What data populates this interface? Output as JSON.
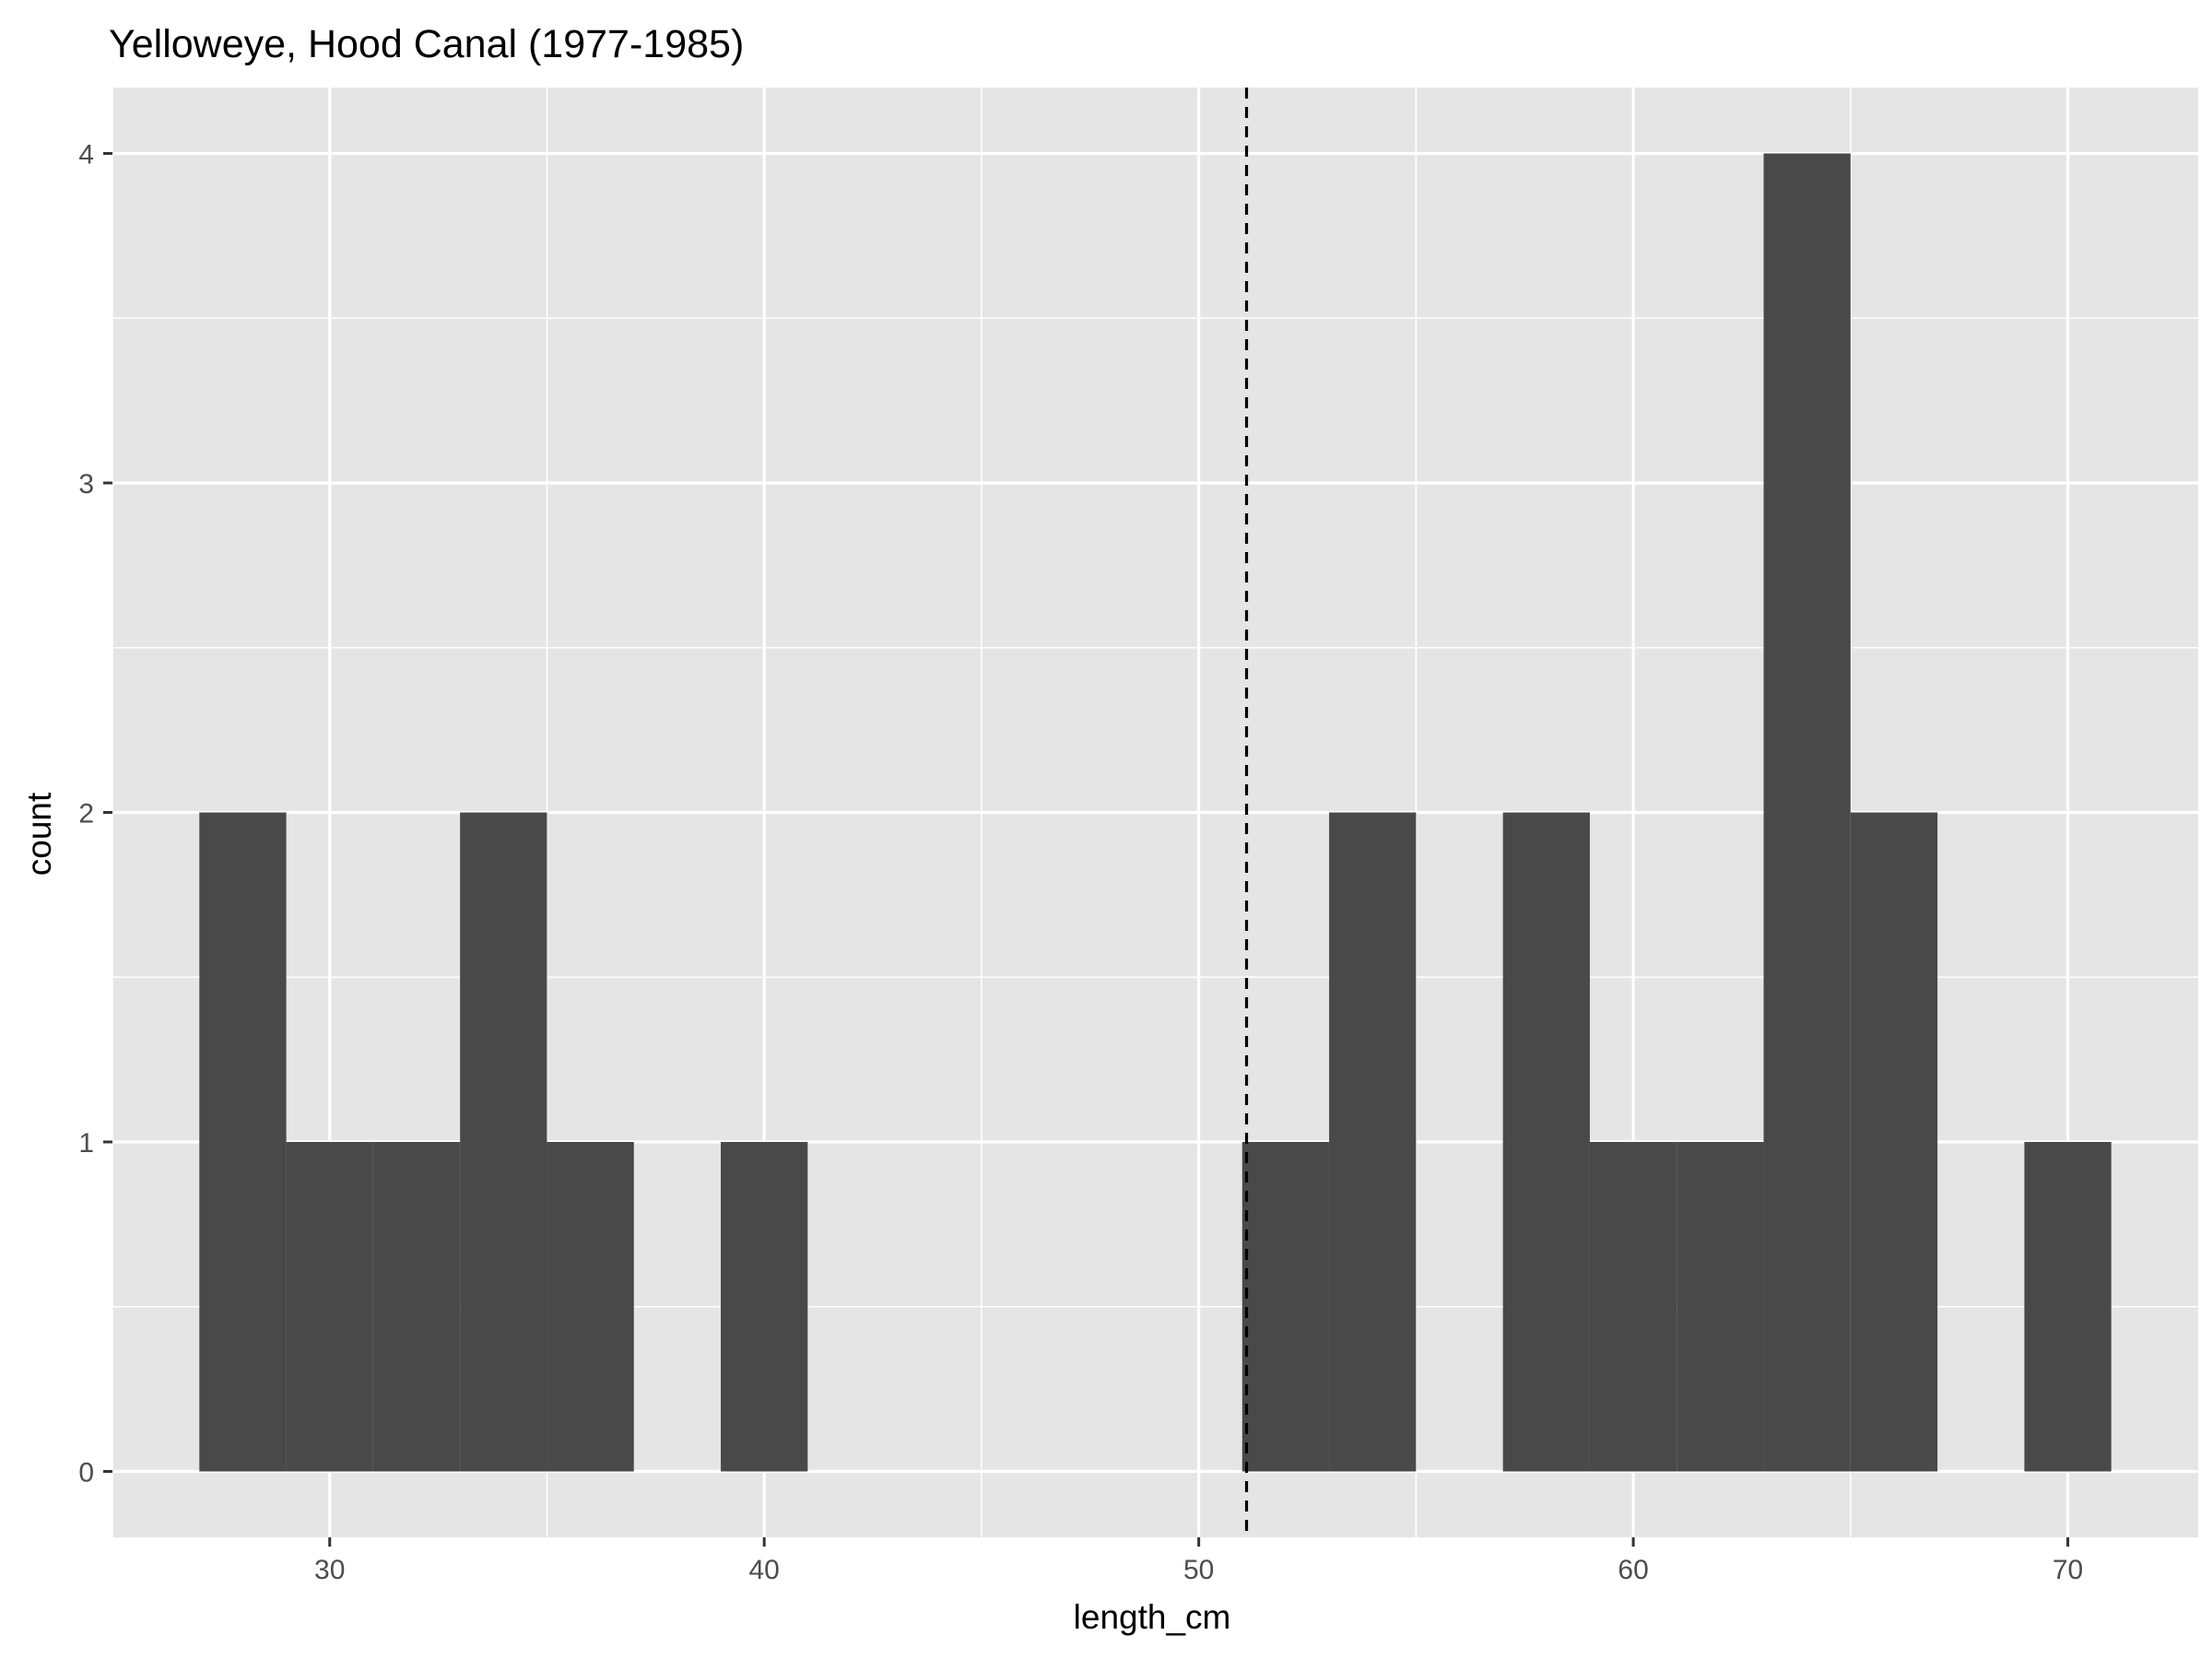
{
  "chart_data": {
    "type": "bar",
    "title": "Yelloweye, Hood Canal (1977-1985)",
    "xlabel": "length_cm",
    "ylabel": "count",
    "xlim": [
      25,
      73
    ],
    "ylim": [
      -0.2,
      4.2
    ],
    "x_ticks": [
      30,
      40,
      50,
      60,
      70
    ],
    "y_ticks": [
      0,
      1,
      2,
      3,
      4
    ],
    "bin_width": 2,
    "bins": [
      {
        "x0": 27,
        "x1": 29,
        "count": 2
      },
      {
        "x0": 29,
        "x1": 31,
        "count": 1
      },
      {
        "x0": 31,
        "x1": 33,
        "count": 1
      },
      {
        "x0": 33,
        "x1": 35,
        "count": 2
      },
      {
        "x0": 35,
        "x1": 37,
        "count": 1
      },
      {
        "x0": 39,
        "x1": 41,
        "count": 1
      },
      {
        "x0": 51,
        "x1": 53,
        "count": 1
      },
      {
        "x0": 53,
        "x1": 55,
        "count": 2
      },
      {
        "x0": 57,
        "x1": 59,
        "count": 2
      },
      {
        "x0": 59,
        "x1": 61,
        "count": 1
      },
      {
        "x0": 61,
        "x1": 63,
        "count": 1
      },
      {
        "x0": 63,
        "x1": 65,
        "count": 4
      },
      {
        "x0": 65,
        "x1": 67,
        "count": 2
      },
      {
        "x0": 69,
        "x1": 71,
        "count": 1
      }
    ],
    "mean_line": {
      "x": 51.1,
      "style": "dashed"
    },
    "grid": true,
    "colors": {
      "panel": "#e5e5e5",
      "grid": "#ffffff",
      "bar": "#494949",
      "mean_line": "#000000",
      "tick_text": "#4d4d4d",
      "title_text": "#000000"
    }
  }
}
